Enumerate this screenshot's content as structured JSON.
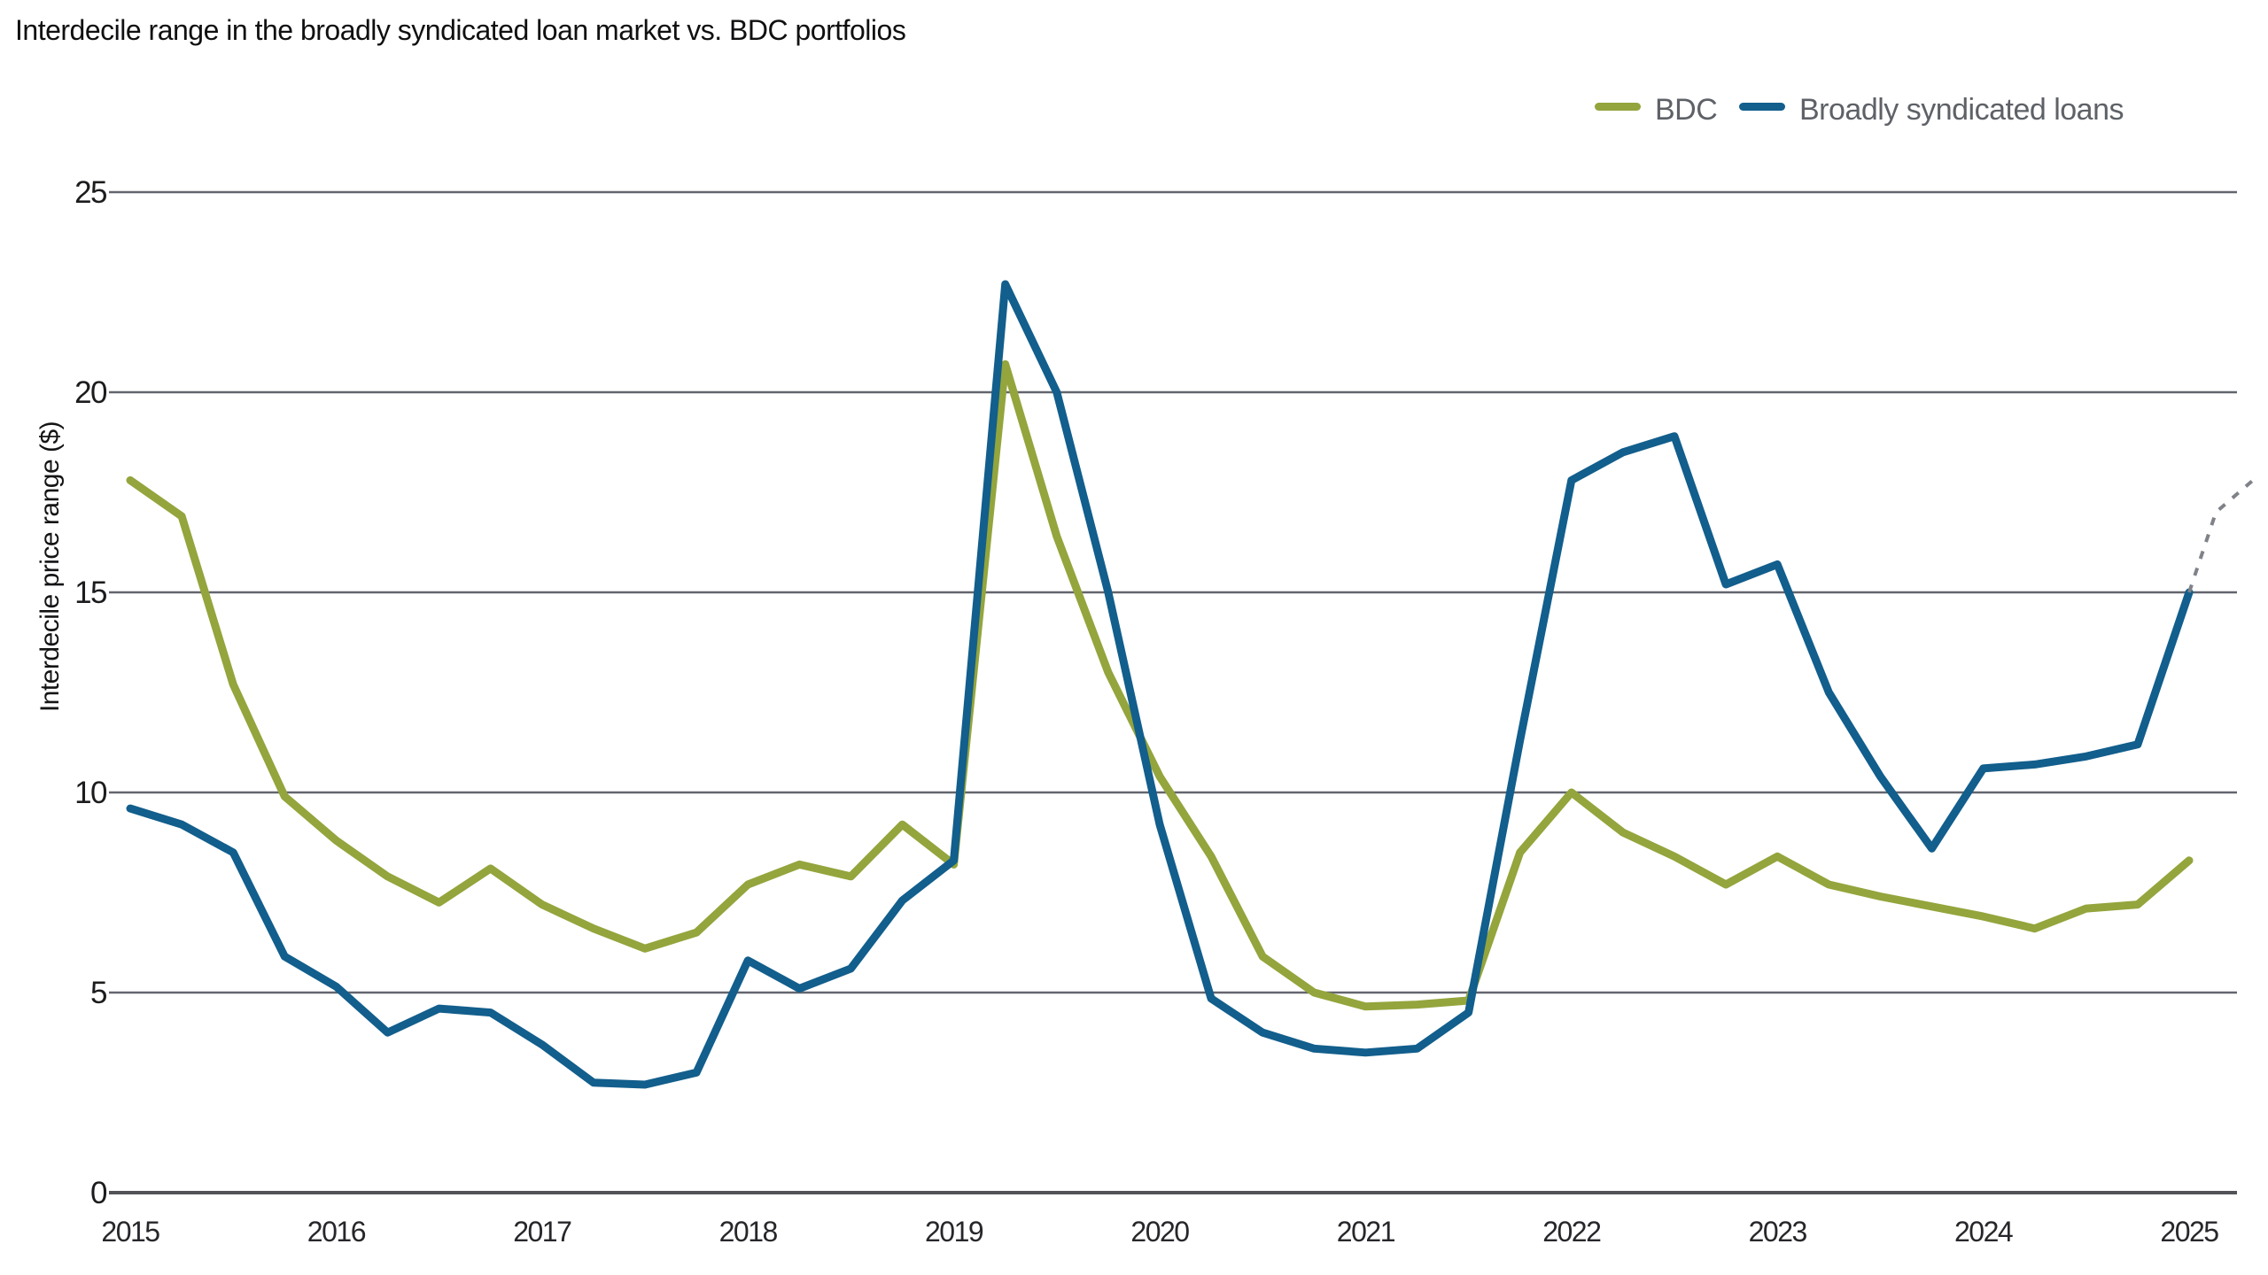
{
  "title": "Interdecile range in the broadly syndicated loan market vs. BDC portfolios",
  "y_axis_label": "Interdecile price range ($)",
  "legend": {
    "items": [
      {
        "label": "BDC",
        "color": "#93A53C"
      },
      {
        "label": "Broadly syndicated loans",
        "color": "#125E8C"
      }
    ]
  },
  "colors": {
    "bdc": "#93A53C",
    "bsl": "#125E8C",
    "gridline": "#63656E",
    "baseline": "#515359",
    "projection": "#7F8288",
    "ytick_text": "#1c1c1f",
    "xtick_text": "#27272b",
    "legend_text": "#5e6167"
  },
  "chart_data": {
    "type": "line",
    "title": "Interdecile range in the broadly syndicated loan market vs. BDC portfolios",
    "xlabel": "",
    "ylabel": "Interdecile price range ($)",
    "ylim": [
      0,
      25
    ],
    "yticks": [
      0,
      5,
      10,
      15,
      20,
      25
    ],
    "xticks": [
      2015,
      2016,
      2017,
      2018,
      2019,
      2020,
      2021,
      2022,
      2023,
      2024,
      2025
    ],
    "grid": "horizontal-only",
    "legend_position": "top-right",
    "x_start_year": 2015,
    "x_step_years": 0.25,
    "x_frequency": "quarterly",
    "series": [
      {
        "name": "BDC",
        "color": "#93A53C",
        "values": [
          17.8,
          16.9,
          12.7,
          9.9,
          8.8,
          7.9,
          7.25,
          8.1,
          7.2,
          6.6,
          6.1,
          6.5,
          7.7,
          8.2,
          7.9,
          9.2,
          8.2,
          20.7,
          16.4,
          13.0,
          10.4,
          8.4,
          5.9,
          5.0,
          4.65,
          4.7,
          4.8,
          8.5,
          10.0,
          9.0,
          8.4,
          7.7,
          8.4,
          7.7,
          7.4,
          7.15,
          6.9,
          6.6,
          7.1,
          7.2,
          8.3
        ]
      },
      {
        "name": "Broadly syndicated loans",
        "color": "#125E8C",
        "values": [
          9.6,
          9.2,
          8.5,
          5.9,
          5.15,
          4.0,
          4.6,
          4.5,
          3.7,
          2.75,
          2.7,
          3.0,
          5.8,
          5.1,
          5.6,
          7.3,
          8.3,
          22.7,
          20.0,
          15.0,
          9.2,
          4.85,
          4.0,
          3.6,
          3.5,
          3.6,
          4.5,
          11.3,
          17.8,
          18.5,
          18.9,
          15.2,
          15.7,
          12.5,
          10.4,
          8.6,
          10.6,
          10.7,
          10.9,
          11.2,
          15.0
        ]
      }
    ],
    "projection_dashed": {
      "name": "Broadly syndicated loans projection tail",
      "color": "#7F8288",
      "x_years": [
        2025.0,
        2025.13,
        2025.31
      ],
      "values": [
        15.0,
        17.0,
        17.8
      ]
    }
  }
}
